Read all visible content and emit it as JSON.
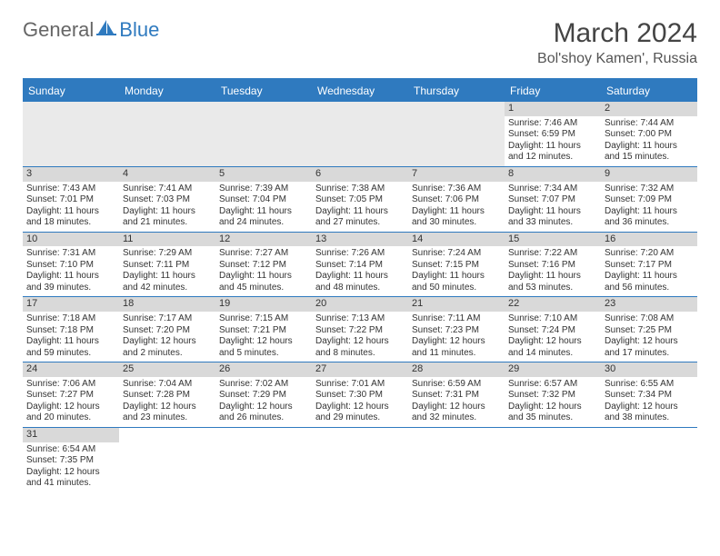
{
  "brand": {
    "general": "General",
    "blue": "Blue"
  },
  "title": "March 2024",
  "location": "Bol'shoy Kamen', Russia",
  "colors": {
    "accent": "#2f7abf",
    "stripe": "#d9d9d9",
    "empty": "#eaeaea"
  },
  "day_headers": [
    "Sunday",
    "Monday",
    "Tuesday",
    "Wednesday",
    "Thursday",
    "Friday",
    "Saturday"
  ],
  "leading_blanks": 5,
  "days": [
    {
      "n": "1",
      "sr": "Sunrise: 7:46 AM",
      "ss": "Sunset: 6:59 PM",
      "d1": "Daylight: 11 hours",
      "d2": "and 12 minutes."
    },
    {
      "n": "2",
      "sr": "Sunrise: 7:44 AM",
      "ss": "Sunset: 7:00 PM",
      "d1": "Daylight: 11 hours",
      "d2": "and 15 minutes."
    },
    {
      "n": "3",
      "sr": "Sunrise: 7:43 AM",
      "ss": "Sunset: 7:01 PM",
      "d1": "Daylight: 11 hours",
      "d2": "and 18 minutes."
    },
    {
      "n": "4",
      "sr": "Sunrise: 7:41 AM",
      "ss": "Sunset: 7:03 PM",
      "d1": "Daylight: 11 hours",
      "d2": "and 21 minutes."
    },
    {
      "n": "5",
      "sr": "Sunrise: 7:39 AM",
      "ss": "Sunset: 7:04 PM",
      "d1": "Daylight: 11 hours",
      "d2": "and 24 minutes."
    },
    {
      "n": "6",
      "sr": "Sunrise: 7:38 AM",
      "ss": "Sunset: 7:05 PM",
      "d1": "Daylight: 11 hours",
      "d2": "and 27 minutes."
    },
    {
      "n": "7",
      "sr": "Sunrise: 7:36 AM",
      "ss": "Sunset: 7:06 PM",
      "d1": "Daylight: 11 hours",
      "d2": "and 30 minutes."
    },
    {
      "n": "8",
      "sr": "Sunrise: 7:34 AM",
      "ss": "Sunset: 7:07 PM",
      "d1": "Daylight: 11 hours",
      "d2": "and 33 minutes."
    },
    {
      "n": "9",
      "sr": "Sunrise: 7:32 AM",
      "ss": "Sunset: 7:09 PM",
      "d1": "Daylight: 11 hours",
      "d2": "and 36 minutes."
    },
    {
      "n": "10",
      "sr": "Sunrise: 7:31 AM",
      "ss": "Sunset: 7:10 PM",
      "d1": "Daylight: 11 hours",
      "d2": "and 39 minutes."
    },
    {
      "n": "11",
      "sr": "Sunrise: 7:29 AM",
      "ss": "Sunset: 7:11 PM",
      "d1": "Daylight: 11 hours",
      "d2": "and 42 minutes."
    },
    {
      "n": "12",
      "sr": "Sunrise: 7:27 AM",
      "ss": "Sunset: 7:12 PM",
      "d1": "Daylight: 11 hours",
      "d2": "and 45 minutes."
    },
    {
      "n": "13",
      "sr": "Sunrise: 7:26 AM",
      "ss": "Sunset: 7:14 PM",
      "d1": "Daylight: 11 hours",
      "d2": "and 48 minutes."
    },
    {
      "n": "14",
      "sr": "Sunrise: 7:24 AM",
      "ss": "Sunset: 7:15 PM",
      "d1": "Daylight: 11 hours",
      "d2": "and 50 minutes."
    },
    {
      "n": "15",
      "sr": "Sunrise: 7:22 AM",
      "ss": "Sunset: 7:16 PM",
      "d1": "Daylight: 11 hours",
      "d2": "and 53 minutes."
    },
    {
      "n": "16",
      "sr": "Sunrise: 7:20 AM",
      "ss": "Sunset: 7:17 PM",
      "d1": "Daylight: 11 hours",
      "d2": "and 56 minutes."
    },
    {
      "n": "17",
      "sr": "Sunrise: 7:18 AM",
      "ss": "Sunset: 7:18 PM",
      "d1": "Daylight: 11 hours",
      "d2": "and 59 minutes."
    },
    {
      "n": "18",
      "sr": "Sunrise: 7:17 AM",
      "ss": "Sunset: 7:20 PM",
      "d1": "Daylight: 12 hours",
      "d2": "and 2 minutes."
    },
    {
      "n": "19",
      "sr": "Sunrise: 7:15 AM",
      "ss": "Sunset: 7:21 PM",
      "d1": "Daylight: 12 hours",
      "d2": "and 5 minutes."
    },
    {
      "n": "20",
      "sr": "Sunrise: 7:13 AM",
      "ss": "Sunset: 7:22 PM",
      "d1": "Daylight: 12 hours",
      "d2": "and 8 minutes."
    },
    {
      "n": "21",
      "sr": "Sunrise: 7:11 AM",
      "ss": "Sunset: 7:23 PM",
      "d1": "Daylight: 12 hours",
      "d2": "and 11 minutes."
    },
    {
      "n": "22",
      "sr": "Sunrise: 7:10 AM",
      "ss": "Sunset: 7:24 PM",
      "d1": "Daylight: 12 hours",
      "d2": "and 14 minutes."
    },
    {
      "n": "23",
      "sr": "Sunrise: 7:08 AM",
      "ss": "Sunset: 7:25 PM",
      "d1": "Daylight: 12 hours",
      "d2": "and 17 minutes."
    },
    {
      "n": "24",
      "sr": "Sunrise: 7:06 AM",
      "ss": "Sunset: 7:27 PM",
      "d1": "Daylight: 12 hours",
      "d2": "and 20 minutes."
    },
    {
      "n": "25",
      "sr": "Sunrise: 7:04 AM",
      "ss": "Sunset: 7:28 PM",
      "d1": "Daylight: 12 hours",
      "d2": "and 23 minutes."
    },
    {
      "n": "26",
      "sr": "Sunrise: 7:02 AM",
      "ss": "Sunset: 7:29 PM",
      "d1": "Daylight: 12 hours",
      "d2": "and 26 minutes."
    },
    {
      "n": "27",
      "sr": "Sunrise: 7:01 AM",
      "ss": "Sunset: 7:30 PM",
      "d1": "Daylight: 12 hours",
      "d2": "and 29 minutes."
    },
    {
      "n": "28",
      "sr": "Sunrise: 6:59 AM",
      "ss": "Sunset: 7:31 PM",
      "d1": "Daylight: 12 hours",
      "d2": "and 32 minutes."
    },
    {
      "n": "29",
      "sr": "Sunrise: 6:57 AM",
      "ss": "Sunset: 7:32 PM",
      "d1": "Daylight: 12 hours",
      "d2": "and 35 minutes."
    },
    {
      "n": "30",
      "sr": "Sunrise: 6:55 AM",
      "ss": "Sunset: 7:34 PM",
      "d1": "Daylight: 12 hours",
      "d2": "and 38 minutes."
    },
    {
      "n": "31",
      "sr": "Sunrise: 6:54 AM",
      "ss": "Sunset: 7:35 PM",
      "d1": "Daylight: 12 hours",
      "d2": "and 41 minutes."
    }
  ]
}
